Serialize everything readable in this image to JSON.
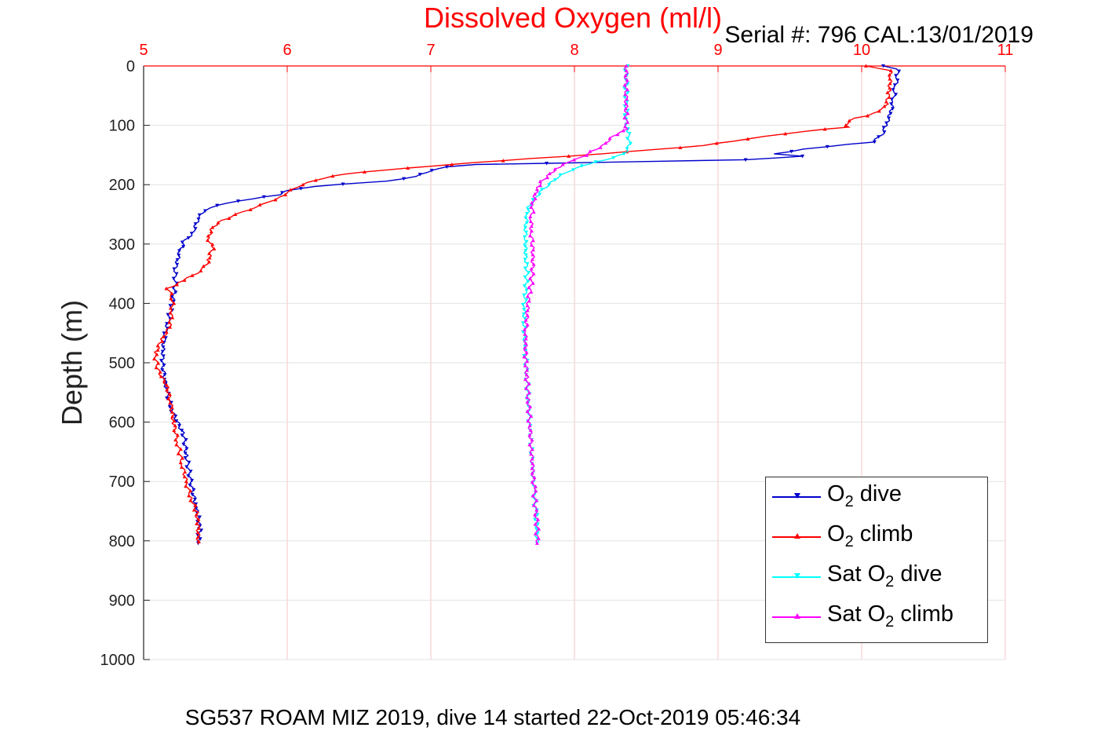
{
  "chart_data": {
    "type": "line",
    "title": "Dissolved Oxygen (ml/l)",
    "subtitle": "Serial #: 796  CAL:13/01/2019",
    "xlabel": "",
    "ylabel": "Depth (m)",
    "footer": "SG537 ROAM MIZ 2019, dive 14 started 22-Oct-2019 05:46:34",
    "xlim": [
      5,
      11
    ],
    "ylim": [
      0,
      1000
    ],
    "y_reversed": true,
    "x_axis_position": "top",
    "x_ticks": [
      "5",
      "6",
      "7",
      "8",
      "9",
      "10",
      "11"
    ],
    "y_ticks": [
      "0",
      "100",
      "200",
      "300",
      "400",
      "500",
      "600",
      "700",
      "800",
      "900",
      "1000"
    ],
    "grid": true,
    "legend_position": "bottom-right",
    "series": [
      {
        "name_parts": {
          "pre": "O",
          "sub": "2",
          "post": " dive"
        },
        "color": "#0000cc",
        "marker": "triangle-down",
        "points": [
          [
            10.15,
            0
          ],
          [
            10.25,
            5
          ],
          [
            10.25,
            20
          ],
          [
            10.23,
            40
          ],
          [
            10.22,
            60
          ],
          [
            10.2,
            80
          ],
          [
            10.17,
            100
          ],
          [
            10.14,
            115
          ],
          [
            10.08,
            128
          ],
          [
            9.9,
            132
          ],
          [
            9.6,
            140
          ],
          [
            9.4,
            148
          ],
          [
            9.6,
            152
          ],
          [
            9.2,
            158
          ],
          [
            8.5,
            161
          ],
          [
            7.8,
            164
          ],
          [
            7.3,
            166
          ],
          [
            7.1,
            170
          ],
          [
            7.0,
            176
          ],
          [
            6.9,
            186
          ],
          [
            6.7,
            194
          ],
          [
            6.4,
            199
          ],
          [
            6.2,
            203
          ],
          [
            6.0,
            210
          ],
          [
            5.95,
            217
          ],
          [
            5.75,
            224
          ],
          [
            5.5,
            235
          ],
          [
            5.42,
            244
          ],
          [
            5.38,
            258
          ],
          [
            5.34,
            282
          ],
          [
            5.28,
            297
          ],
          [
            5.25,
            315
          ],
          [
            5.22,
            342
          ],
          [
            5.22,
            370
          ],
          [
            5.2,
            400
          ],
          [
            5.17,
            430
          ],
          [
            5.14,
            462
          ],
          [
            5.13,
            500
          ],
          [
            5.16,
            548
          ],
          [
            5.2,
            582
          ],
          [
            5.28,
            622
          ],
          [
            5.3,
            660
          ],
          [
            5.33,
            702
          ],
          [
            5.36,
            738
          ],
          [
            5.38,
            760
          ],
          [
            5.39,
            782
          ],
          [
            5.38,
            804
          ]
        ]
      },
      {
        "name_parts": {
          "pre": "O",
          "sub": "2",
          "post": " climb"
        },
        "color": "#ff0000",
        "marker": "triangle-up",
        "points": [
          [
            10.02,
            0
          ],
          [
            10.2,
            8
          ],
          [
            10.2,
            22
          ],
          [
            10.19,
            45
          ],
          [
            10.17,
            68
          ],
          [
            10.05,
            84
          ],
          [
            9.95,
            88
          ],
          [
            9.9,
            97
          ],
          [
            9.9,
            103
          ],
          [
            9.6,
            110
          ],
          [
            9.2,
            123
          ],
          [
            8.9,
            134
          ],
          [
            8.2,
            148
          ],
          [
            7.7,
            156
          ],
          [
            7.3,
            163
          ],
          [
            7.0,
            169
          ],
          [
            6.7,
            175
          ],
          [
            6.4,
            182
          ],
          [
            6.25,
            189
          ],
          [
            6.1,
            200
          ],
          [
            6.0,
            213
          ],
          [
            5.95,
            221
          ],
          [
            5.82,
            234
          ],
          [
            5.65,
            250
          ],
          [
            5.55,
            260
          ],
          [
            5.48,
            272
          ],
          [
            5.45,
            290
          ],
          [
            5.48,
            308
          ],
          [
            5.46,
            320
          ],
          [
            5.45,
            330
          ],
          [
            5.4,
            345
          ],
          [
            5.25,
            365
          ],
          [
            5.17,
            375
          ],
          [
            5.2,
            392
          ],
          [
            5.2,
            412
          ],
          [
            5.18,
            440
          ],
          [
            5.12,
            464
          ],
          [
            5.08,
            486
          ],
          [
            5.1,
            512
          ],
          [
            5.16,
            538
          ],
          [
            5.19,
            568
          ],
          [
            5.21,
            602
          ],
          [
            5.24,
            638
          ],
          [
            5.27,
            672
          ],
          [
            5.3,
            704
          ],
          [
            5.33,
            728
          ],
          [
            5.37,
            752
          ],
          [
            5.38,
            775
          ],
          [
            5.38,
            805
          ]
        ]
      },
      {
        "name_parts": {
          "pre": "Sat O",
          "sub": "2",
          "post": " dive"
        },
        "color": "#00ffff",
        "marker": "triangle-down",
        "points": [
          [
            8.36,
            0
          ],
          [
            8.36,
            30
          ],
          [
            8.36,
            60
          ],
          [
            8.36,
            90
          ],
          [
            8.37,
            110
          ],
          [
            8.38,
            122
          ],
          [
            8.38,
            135
          ],
          [
            8.35,
            148
          ],
          [
            8.22,
            158
          ],
          [
            8.1,
            165
          ],
          [
            7.98,
            175
          ],
          [
            7.88,
            188
          ],
          [
            7.82,
            200
          ],
          [
            7.76,
            212
          ],
          [
            7.72,
            225
          ],
          [
            7.68,
            238
          ],
          [
            7.67,
            252
          ],
          [
            7.66,
            272
          ],
          [
            7.66,
            296
          ],
          [
            7.66,
            322
          ],
          [
            7.67,
            348
          ],
          [
            7.66,
            378
          ],
          [
            7.65,
            410
          ],
          [
            7.65,
            448
          ],
          [
            7.66,
            488
          ],
          [
            7.67,
            528
          ],
          [
            7.68,
            568
          ],
          [
            7.69,
            606
          ],
          [
            7.7,
            645
          ],
          [
            7.71,
            682
          ],
          [
            7.72,
            718
          ],
          [
            7.73,
            752
          ],
          [
            7.74,
            780
          ],
          [
            7.74,
            804
          ]
        ]
      },
      {
        "name_parts": {
          "pre": "Sat O",
          "sub": "2",
          "post": " climb"
        },
        "color": "#ff00ff",
        "marker": "triangle-up",
        "points": [
          [
            8.36,
            0
          ],
          [
            8.36,
            40
          ],
          [
            8.36,
            80
          ],
          [
            8.36,
            106
          ],
          [
            8.31,
            112
          ],
          [
            8.25,
            122
          ],
          [
            8.2,
            134
          ],
          [
            8.12,
            144
          ],
          [
            8.05,
            154
          ],
          [
            7.96,
            162
          ],
          [
            7.9,
            170
          ],
          [
            7.85,
            178
          ],
          [
            7.8,
            188
          ],
          [
            7.76,
            198
          ],
          [
            7.74,
            208
          ],
          [
            7.72,
            220
          ],
          [
            7.71,
            238
          ],
          [
            7.7,
            258
          ],
          [
            7.7,
            282
          ],
          [
            7.71,
            310
          ],
          [
            7.71,
            338
          ],
          [
            7.7,
            366
          ],
          [
            7.68,
            392
          ],
          [
            7.67,
            420
          ],
          [
            7.66,
            452
          ],
          [
            7.66,
            490
          ],
          [
            7.67,
            528
          ],
          [
            7.68,
            566
          ],
          [
            7.69,
            606
          ],
          [
            7.7,
            646
          ],
          [
            7.71,
            682
          ],
          [
            7.72,
            716
          ],
          [
            7.73,
            748
          ],
          [
            7.74,
            776
          ],
          [
            7.74,
            804
          ]
        ]
      }
    ]
  }
}
